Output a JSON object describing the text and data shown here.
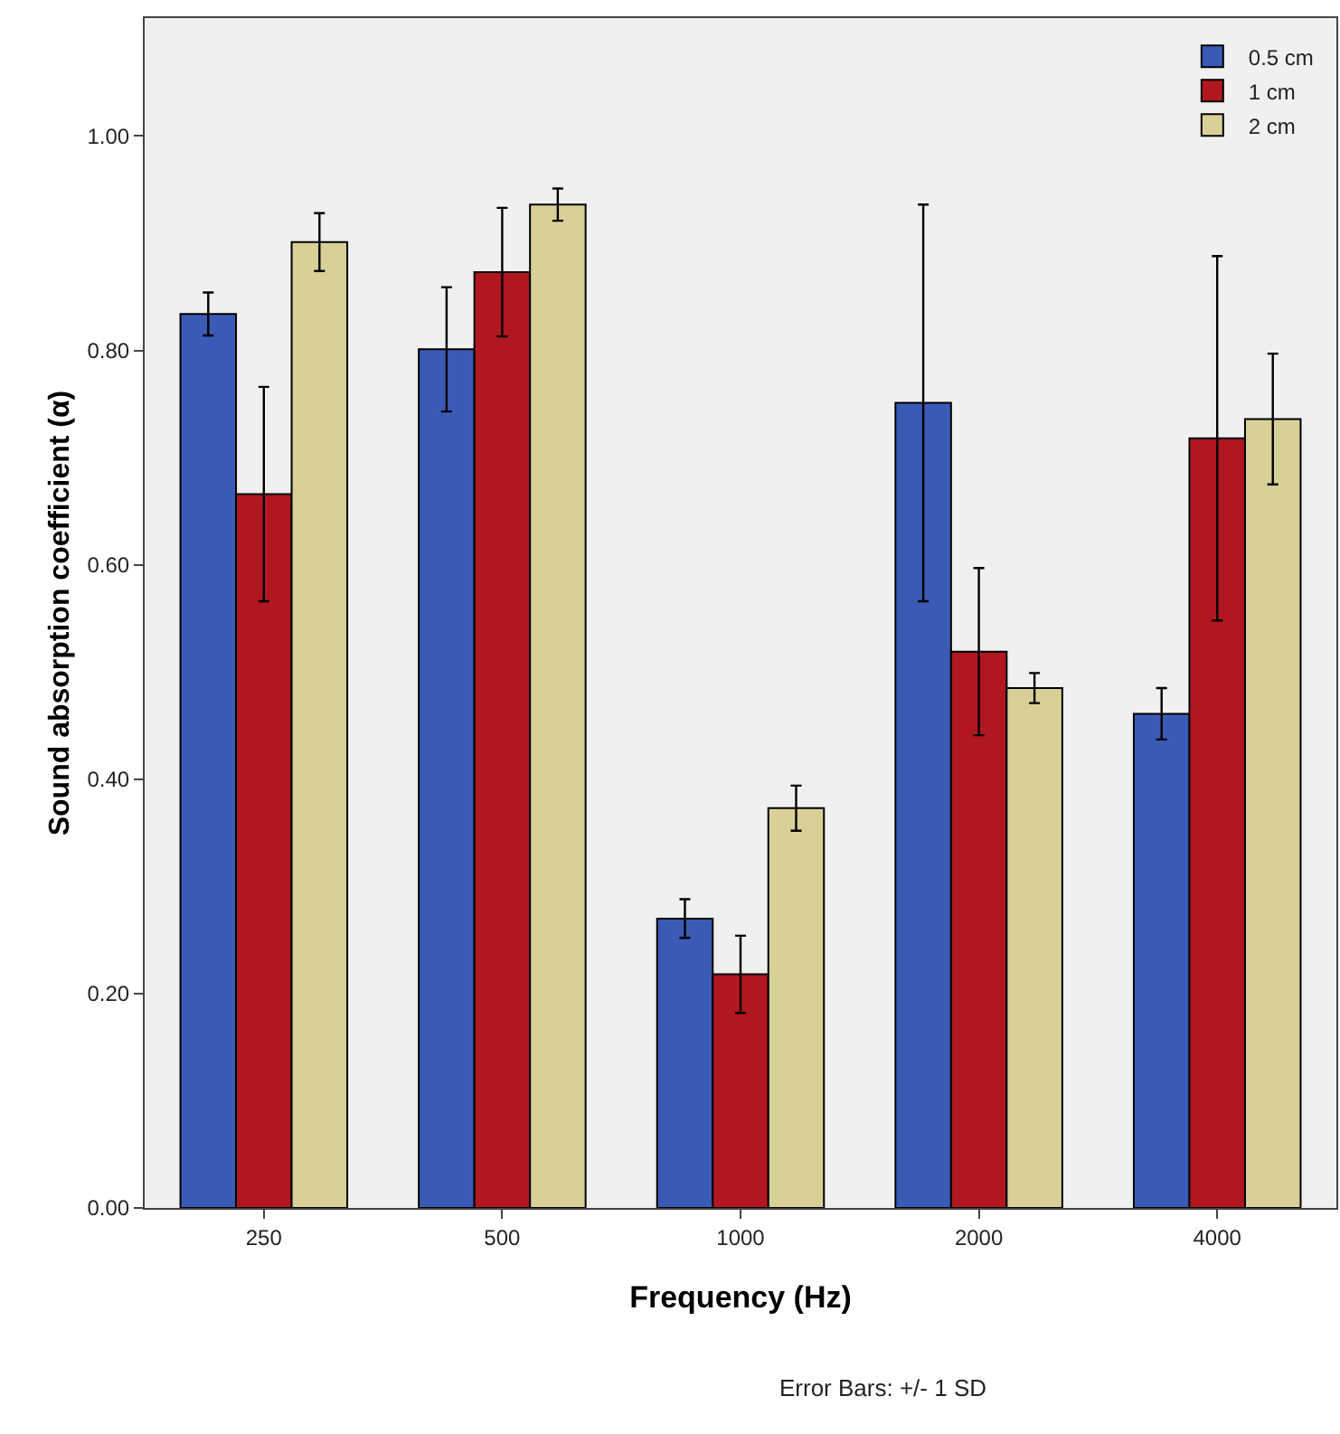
{
  "chart_data": {
    "type": "bar",
    "xlabel": "Frequency (Hz)",
    "ylabel": "Sound absorption coefficient (α)",
    "categories": [
      "250",
      "500",
      "1000",
      "2000",
      "4000"
    ],
    "series": [
      {
        "name": "0.5 cm",
        "color": "#3a5bb5",
        "values": [
          0.834,
          0.801,
          0.27,
          0.751,
          0.461
        ],
        "errors": [
          0.02,
          0.058,
          0.018,
          0.185,
          0.024
        ]
      },
      {
        "name": "1 cm",
        "color": "#b0171f",
        "values": [
          0.666,
          0.873,
          0.218,
          0.519,
          0.718
        ],
        "errors": [
          0.1,
          0.06,
          0.036,
          0.078,
          0.17
        ]
      },
      {
        "name": "2 cm",
        "color": "#d8d096",
        "values": [
          0.901,
          0.936,
          0.373,
          0.485,
          0.736
        ],
        "errors": [
          0.027,
          0.015,
          0.021,
          0.014,
          0.061
        ]
      }
    ],
    "ylim": [
      0,
      1.11
    ],
    "yticks": [
      {
        "value": 0,
        "label": "0.00"
      },
      {
        "value": 0.2,
        "label": "0.20"
      },
      {
        "value": 0.4,
        "label": "0.40"
      },
      {
        "value": 0.6,
        "label": "0.60"
      },
      {
        "value": 0.8,
        "label": "0.80"
      },
      {
        "value": 1,
        "label": "1.00"
      }
    ],
    "grid": false,
    "legend": "top right",
    "annotations": [
      "Error Bars: +/- 1 SD"
    ]
  }
}
